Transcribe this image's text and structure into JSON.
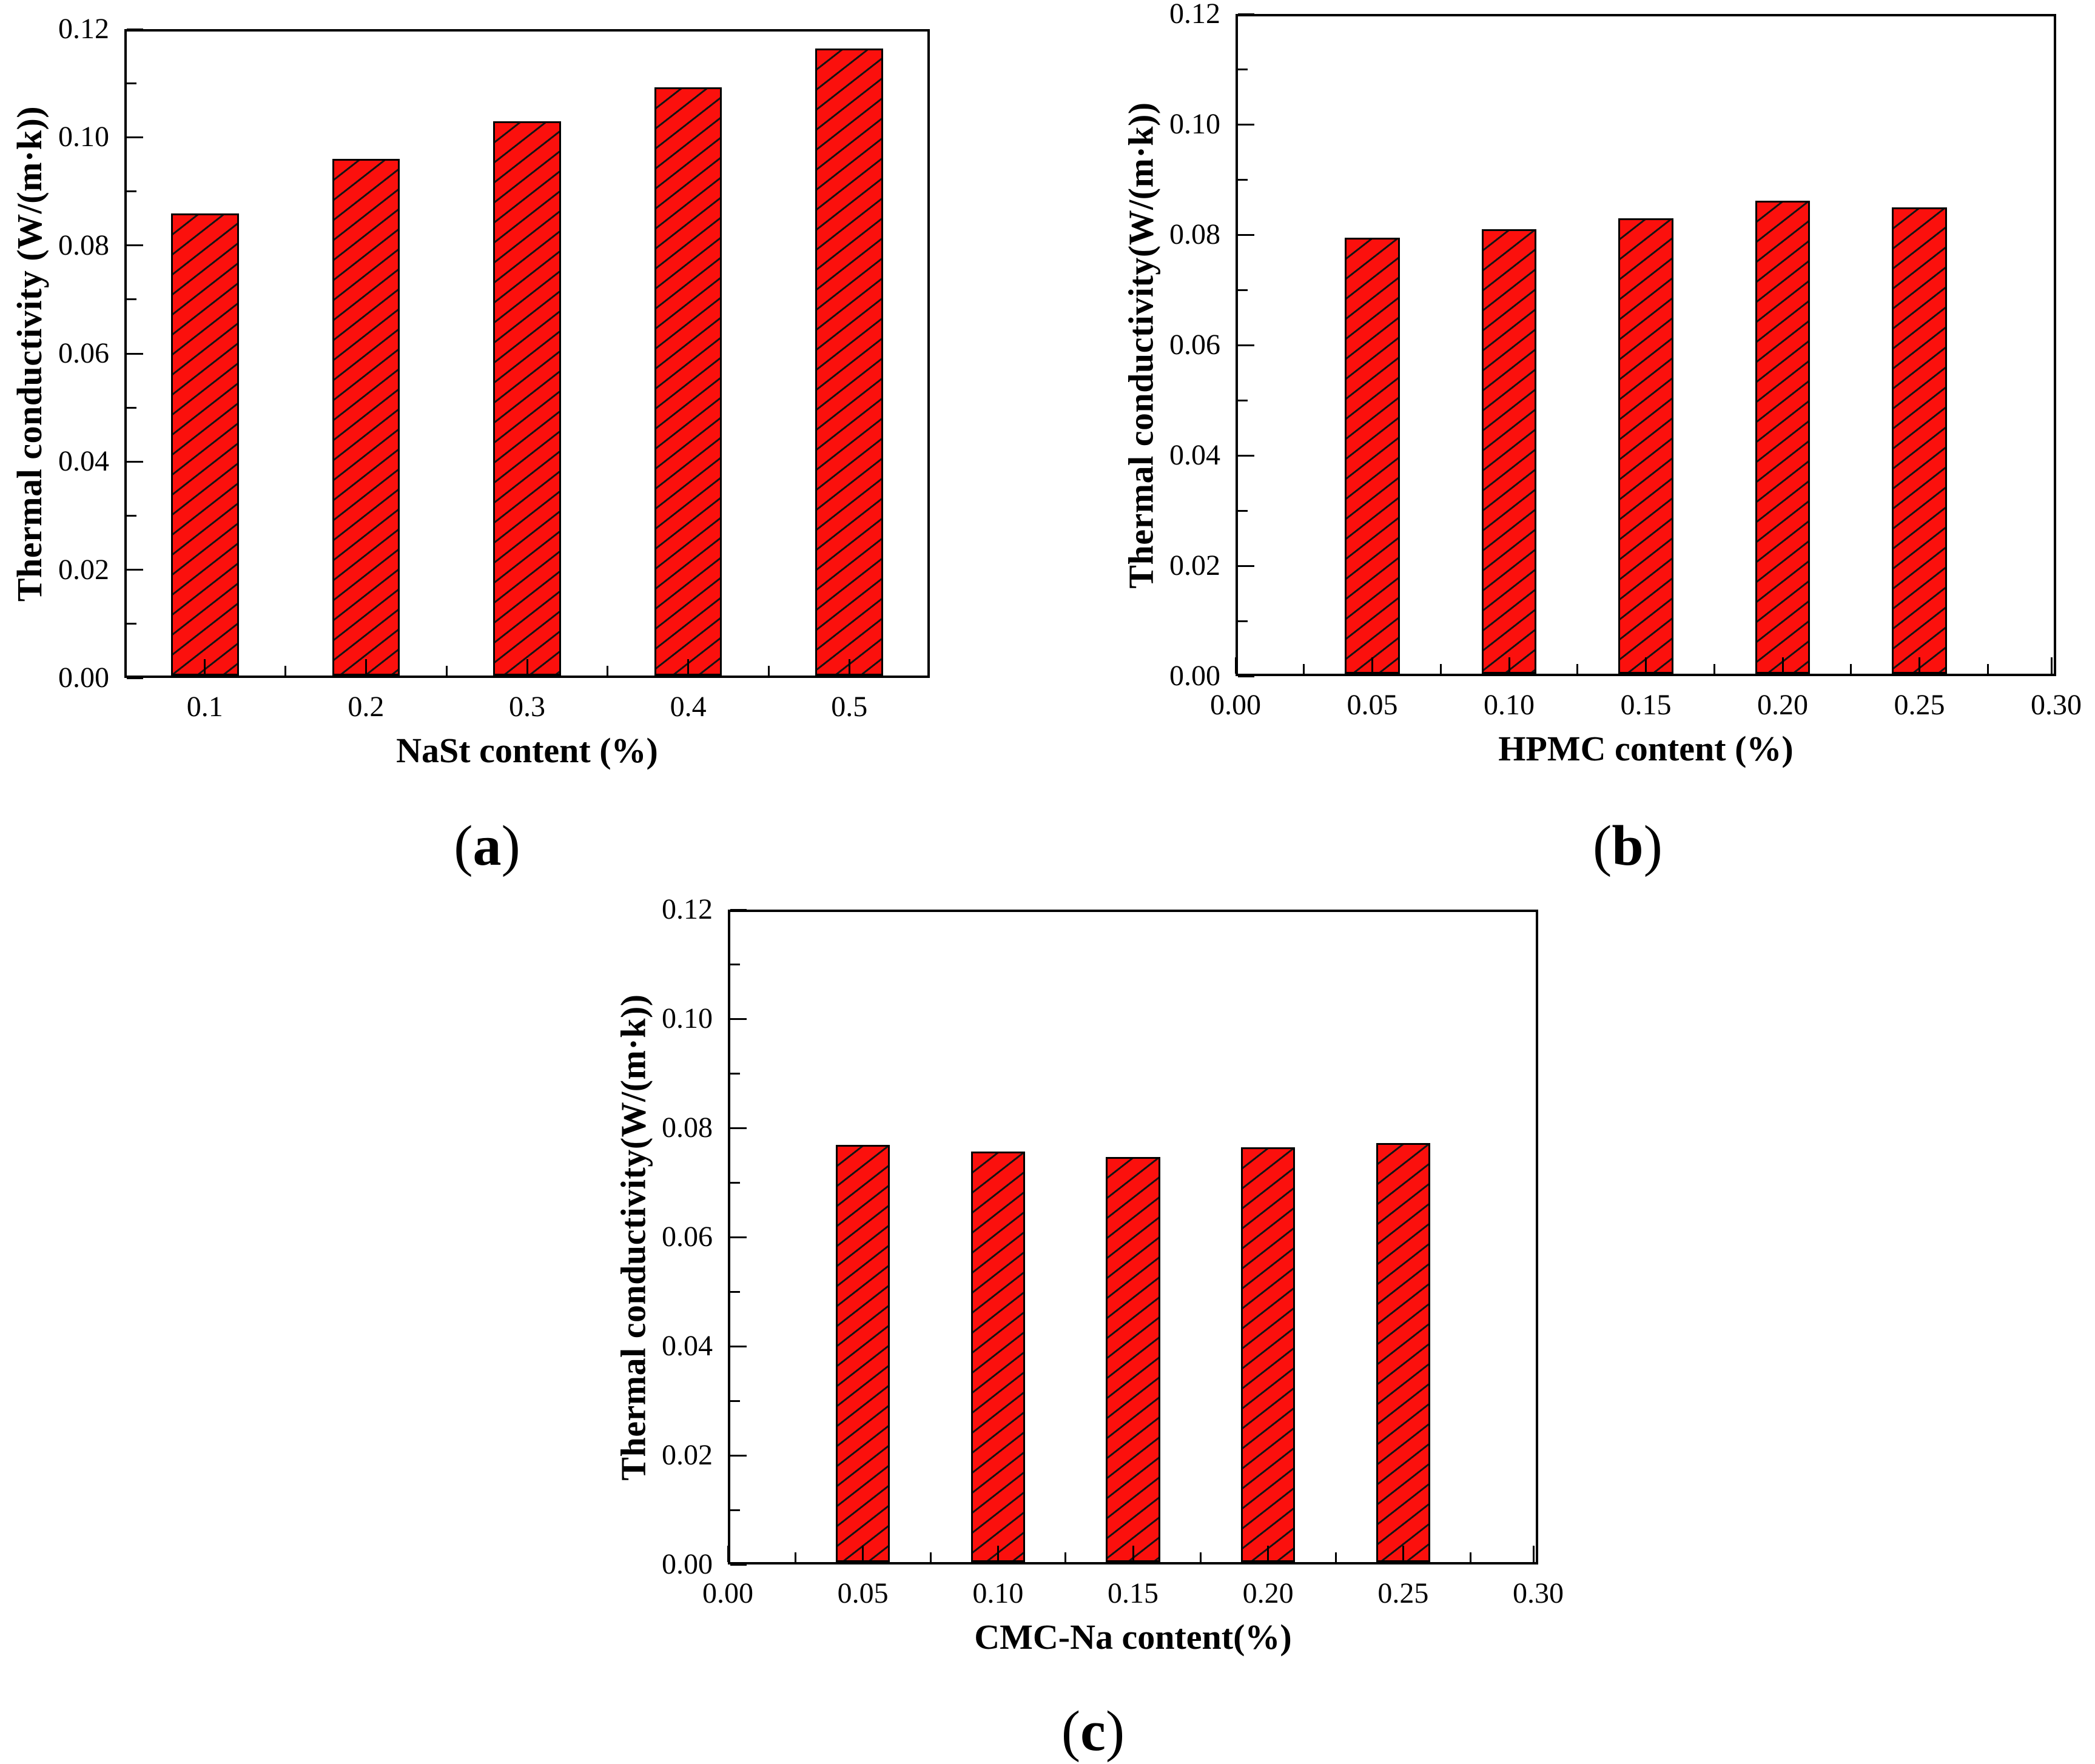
{
  "figure": {
    "background": "#ffffff",
    "axis_color": "#000000",
    "bar_fill": "#fb100d",
    "hatch_color": "#141414"
  },
  "chart_data": [
    {
      "type": "bar",
      "panel": "a",
      "caption": {
        "open": "(",
        "letter": "a",
        "close": ")"
      },
      "xlabel": "NaSt content (%)",
      "ylabel": "Thermal conductivity (W/(m·k))",
      "categories": [
        "0.1",
        "0.2",
        "0.3",
        "0.4",
        "0.5"
      ],
      "values": [
        0.0855,
        0.0955,
        0.1025,
        0.1088,
        0.116
      ],
      "ylim": [
        0,
        0.12
      ],
      "y_tick_labels": [
        "0.00",
        "0.02",
        "0.04",
        "0.06",
        "0.08",
        "0.10",
        "0.12"
      ],
      "x_tick_labels": [
        "0.1",
        "0.2",
        "0.3",
        "0.4",
        "0.5"
      ],
      "grid": false,
      "legend": null,
      "bar_fill": "#fb100d",
      "hatch": "diagonal-forward"
    },
    {
      "type": "bar",
      "panel": "b",
      "caption": {
        "open": "(",
        "letter": "b",
        "close": ")"
      },
      "xlabel": "HPMC content (%)",
      "ylabel": "Thermal conductivity(W/(m·k))",
      "x": [
        0.05,
        0.1,
        0.15,
        0.2,
        0.25
      ],
      "values": [
        0.079,
        0.0805,
        0.0825,
        0.0857,
        0.0845
      ],
      "xlim": [
        0,
        0.3
      ],
      "ylim": [
        0,
        0.12
      ],
      "y_tick_labels": [
        "0.00",
        "0.02",
        "0.04",
        "0.06",
        "0.08",
        "0.10",
        "0.12"
      ],
      "x_tick_labels": [
        "0.00",
        "0.05",
        "0.10",
        "0.15",
        "0.20",
        "0.25",
        "0.30"
      ],
      "grid": false,
      "legend": null,
      "bar_fill": "#fb100d",
      "hatch": "diagonal-forward"
    },
    {
      "type": "bar",
      "panel": "c",
      "caption": {
        "open": "(",
        "letter": "c",
        "close": ")"
      },
      "xlabel": "CMC-Na content(%)",
      "ylabel": "Thermal conductivity(W/(m·k))",
      "x": [
        0.05,
        0.1,
        0.15,
        0.2,
        0.25
      ],
      "values": [
        0.0765,
        0.0752,
        0.0742,
        0.076,
        0.0768
      ],
      "xlim": [
        0,
        0.3
      ],
      "ylim": [
        0,
        0.12
      ],
      "y_tick_labels": [
        "0.00",
        "0.02",
        "0.04",
        "0.06",
        "0.08",
        "0.10",
        "0.12"
      ],
      "x_tick_labels": [
        "0.00",
        "0.05",
        "0.10",
        "0.15",
        "0.20",
        "0.25",
        "0.30"
      ],
      "grid": false,
      "legend": null,
      "bar_fill": "#fb100d",
      "hatch": "diagonal-forward"
    }
  ]
}
